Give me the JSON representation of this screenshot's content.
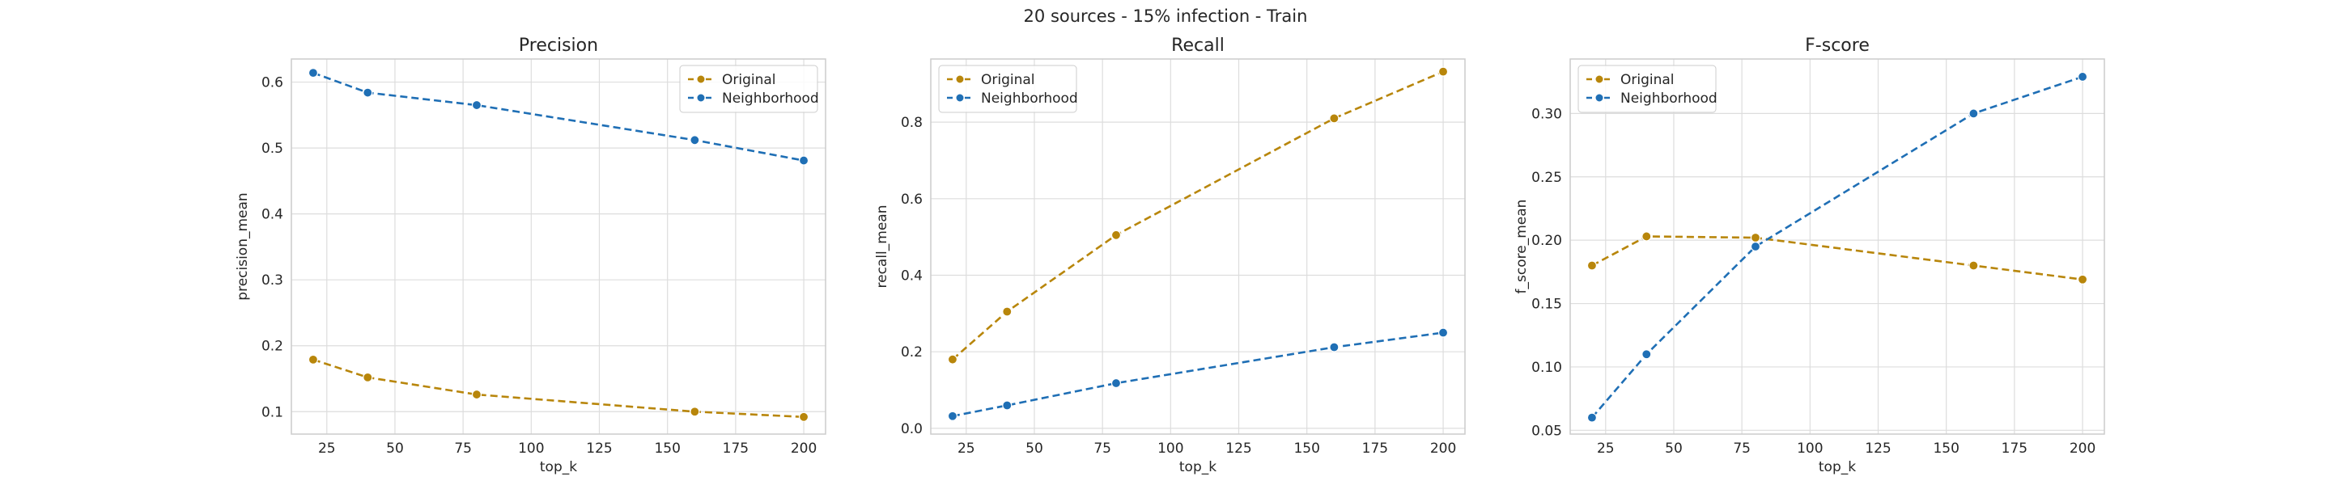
{
  "figure": {
    "suptitle": "20 sources - 15% infection - Train"
  },
  "colors": {
    "Original": "#b8860b",
    "Neighborhood": "#1f6fb5"
  },
  "chart_data": [
    {
      "type": "line",
      "title": "Precision",
      "xlabel": "top_k",
      "ylabel": "precision_mean",
      "x": [
        20,
        40,
        80,
        160,
        200
      ],
      "series": [
        {
          "name": "Original",
          "values": [
            0.179,
            0.152,
            0.126,
            0.1,
            0.092
          ]
        },
        {
          "name": "Neighborhood",
          "values": [
            0.614,
            0.584,
            0.565,
            0.512,
            0.481
          ]
        }
      ],
      "xlim": [
        12,
        208
      ],
      "ylim": [
        0.066,
        0.635
      ],
      "xticks": [
        25,
        50,
        75,
        100,
        125,
        150,
        175,
        200
      ],
      "yticks": [
        0.1,
        0.2,
        0.3,
        0.4,
        0.5,
        0.6
      ],
      "legend": "top-right",
      "grid": true
    },
    {
      "type": "line",
      "title": "Recall",
      "xlabel": "top_k",
      "ylabel": "recall_mean",
      "x": [
        20,
        40,
        80,
        160,
        200
      ],
      "series": [
        {
          "name": "Original",
          "values": [
            0.18,
            0.305,
            0.505,
            0.81,
            0.932
          ]
        },
        {
          "name": "Neighborhood",
          "values": [
            0.032,
            0.06,
            0.118,
            0.212,
            0.25
          ]
        }
      ],
      "xlim": [
        12,
        208
      ],
      "ylim": [
        -0.015,
        0.965
      ],
      "xticks": [
        25,
        50,
        75,
        100,
        125,
        150,
        175,
        200
      ],
      "yticks": [
        0.0,
        0.2,
        0.4,
        0.6,
        0.8
      ],
      "legend": "top-left",
      "grid": true
    },
    {
      "type": "line",
      "title": "F-score",
      "xlabel": "top_k",
      "ylabel": "f_score_mean",
      "x": [
        20,
        40,
        80,
        160,
        200
      ],
      "series": [
        {
          "name": "Original",
          "values": [
            0.18,
            0.203,
            0.202,
            0.18,
            0.169
          ]
        },
        {
          "name": "Neighborhood",
          "values": [
            0.06,
            0.11,
            0.195,
            0.3,
            0.329
          ]
        }
      ],
      "xlim": [
        12,
        208
      ],
      "ylim": [
        0.047,
        0.343
      ],
      "xticks": [
        25,
        50,
        75,
        100,
        125,
        150,
        175,
        200
      ],
      "yticks": [
        0.05,
        0.1,
        0.15,
        0.2,
        0.25,
        0.3
      ],
      "legend": "top-left",
      "grid": true
    }
  ]
}
